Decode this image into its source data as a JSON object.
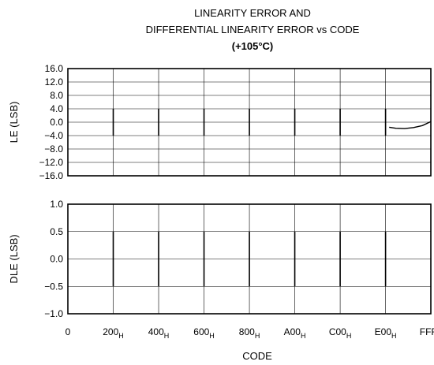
{
  "title": {
    "line1": "LINEARITY ERROR AND",
    "line2": "DIFFERENTIAL LINEARITY ERROR vs CODE",
    "line3": "(+105°C)"
  },
  "chart_data": [
    {
      "type": "line",
      "name": "le_panel",
      "ylabel": "LE (LSB)",
      "ylim": [
        -16,
        16
      ],
      "y_ticks": [
        16,
        12,
        8,
        4,
        0,
        -4,
        -8,
        -12,
        -16
      ],
      "y_tick_labels": [
        "16.0",
        "12.0",
        "8.0",
        "4.0",
        "0.0",
        "−4.0",
        "−8.0",
        "−12.0",
        "−16.0"
      ],
      "xlim": [
        0,
        4095
      ],
      "x_grid": [
        512,
        1024,
        1536,
        2048,
        2560,
        3072,
        3584
      ],
      "grid": true,
      "segments_note": "Vertical spikes of ±4 LSB at major code transitions",
      "spikes": [
        {
          "x": 512,
          "y_top": 4,
          "y_bottom": -4
        },
        {
          "x": 1024,
          "y_top": 4,
          "y_bottom": -4
        },
        {
          "x": 1536,
          "y_top": 4,
          "y_bottom": -4
        },
        {
          "x": 2048,
          "y_top": 4,
          "y_bottom": -4
        },
        {
          "x": 2560,
          "y_top": 4,
          "y_bottom": -4
        },
        {
          "x": 3072,
          "y_top": 4,
          "y_bottom": -4
        },
        {
          "x": 3584,
          "y_top": 4,
          "y_bottom": -4
        }
      ],
      "tail": {
        "x": [
          3625,
          3700,
          3800,
          3900,
          4000,
          4095
        ],
        "y": [
          -1.5,
          -1.8,
          -1.9,
          -1.6,
          -1.0,
          0.2
        ]
      }
    },
    {
      "type": "line",
      "name": "dle_panel",
      "ylabel": "DLE (LSB)",
      "ylim": [
        -1,
        1
      ],
      "y_ticks": [
        1.0,
        0.5,
        0.0,
        -0.5,
        -1.0
      ],
      "y_tick_labels": [
        "1.0",
        "0.5",
        "0.0",
        "−0.5",
        "−1.0"
      ],
      "xlim": [
        0,
        4095
      ],
      "x_grid": [
        512,
        1024,
        1536,
        2048,
        2560,
        3072,
        3584
      ],
      "grid": true,
      "xlabel": "CODE",
      "x_tick_labels": [
        {
          "value": 0,
          "main": "0",
          "sub": ""
        },
        {
          "value": 512,
          "main": "200",
          "sub": "H"
        },
        {
          "value": 1024,
          "main": "400",
          "sub": "H"
        },
        {
          "value": 1536,
          "main": "600",
          "sub": "H"
        },
        {
          "value": 2048,
          "main": "800",
          "sub": "H"
        },
        {
          "value": 2560,
          "main": "A00",
          "sub": "H"
        },
        {
          "value": 3072,
          "main": "C00",
          "sub": "H"
        },
        {
          "value": 3584,
          "main": "E00",
          "sub": "H"
        },
        {
          "value": 4095,
          "main": "FFF",
          "sub": "H"
        }
      ],
      "spikes": [
        {
          "x": 512,
          "y_top": 0.5,
          "y_bottom": -0.5
        },
        {
          "x": 1024,
          "y_top": 0.5,
          "y_bottom": -0.5
        },
        {
          "x": 1536,
          "y_top": 0.5,
          "y_bottom": -0.5
        },
        {
          "x": 2048,
          "y_top": 0.5,
          "y_bottom": -0.5
        },
        {
          "x": 2560,
          "y_top": 0.5,
          "y_bottom": -0.5
        },
        {
          "x": 3072,
          "y_top": 0.5,
          "y_bottom": -0.5
        },
        {
          "x": 3584,
          "y_top": 0.5,
          "y_bottom": -0.5
        }
      ]
    }
  ],
  "colors": {
    "line": "#000000",
    "grid": "#000000",
    "background": "#ffffff"
  }
}
